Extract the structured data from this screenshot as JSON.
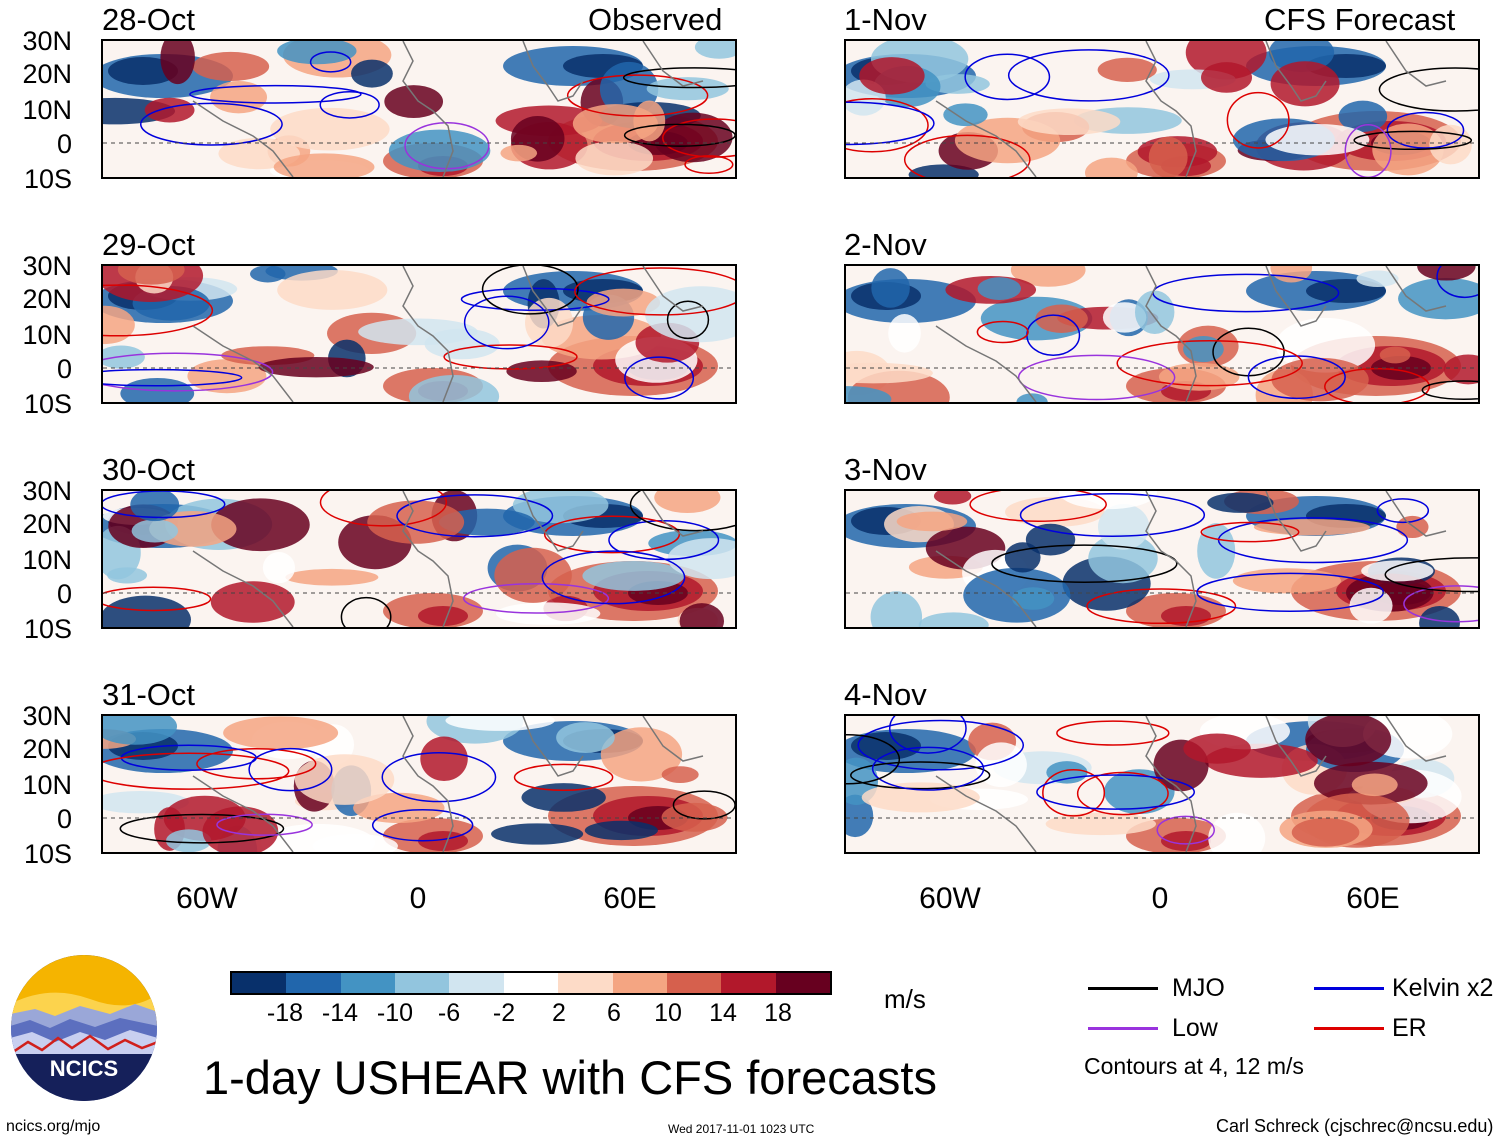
{
  "column_headers": {
    "left": "Observed",
    "right": "CFS Forecast"
  },
  "panels_left": [
    {
      "date": "28-Oct"
    },
    {
      "date": "29-Oct"
    },
    {
      "date": "30-Oct"
    },
    {
      "date": "31-Oct"
    }
  ],
  "panels_right": [
    {
      "date": "1-Nov"
    },
    {
      "date": "2-Nov"
    },
    {
      "date": "3-Nov"
    },
    {
      "date": "4-Nov"
    }
  ],
  "lat_labels": [
    "30N",
    "20N",
    "10N",
    "0",
    "10S"
  ],
  "lon_labels": [
    "60W",
    "0",
    "60E"
  ],
  "colorbar": {
    "labels": [
      "-18",
      "-14",
      "-10",
      "-6",
      "-2",
      "2",
      "6",
      "10",
      "14",
      "18"
    ],
    "colors": [
      "#08306b",
      "#2166ac",
      "#4393c3",
      "#92c5de",
      "#d1e5f0",
      "#ffffff",
      "#fddbc7",
      "#f4a582",
      "#d6604d",
      "#b2182b",
      "#67001f"
    ],
    "units": "m/s"
  },
  "legend": {
    "items": [
      {
        "label": "MJO",
        "color": "#000000"
      },
      {
        "label": "Kelvin x2",
        "color": "#0000dd"
      },
      {
        "label": "Low",
        "color": "#9933dd"
      },
      {
        "label": "ER",
        "color": "#dd0000"
      }
    ],
    "note": "Contours at 4, 12 m/s"
  },
  "logo": {
    "text": "NCICS"
  },
  "title": "1-day USHEAR with CFS forecasts",
  "footer": {
    "site": "ncics.org/mjo",
    "timestamp": "Wed 2017-11-01 1023 UTC",
    "credit": "Carl Schreck (cjschrec@ncsu.edu)"
  }
}
